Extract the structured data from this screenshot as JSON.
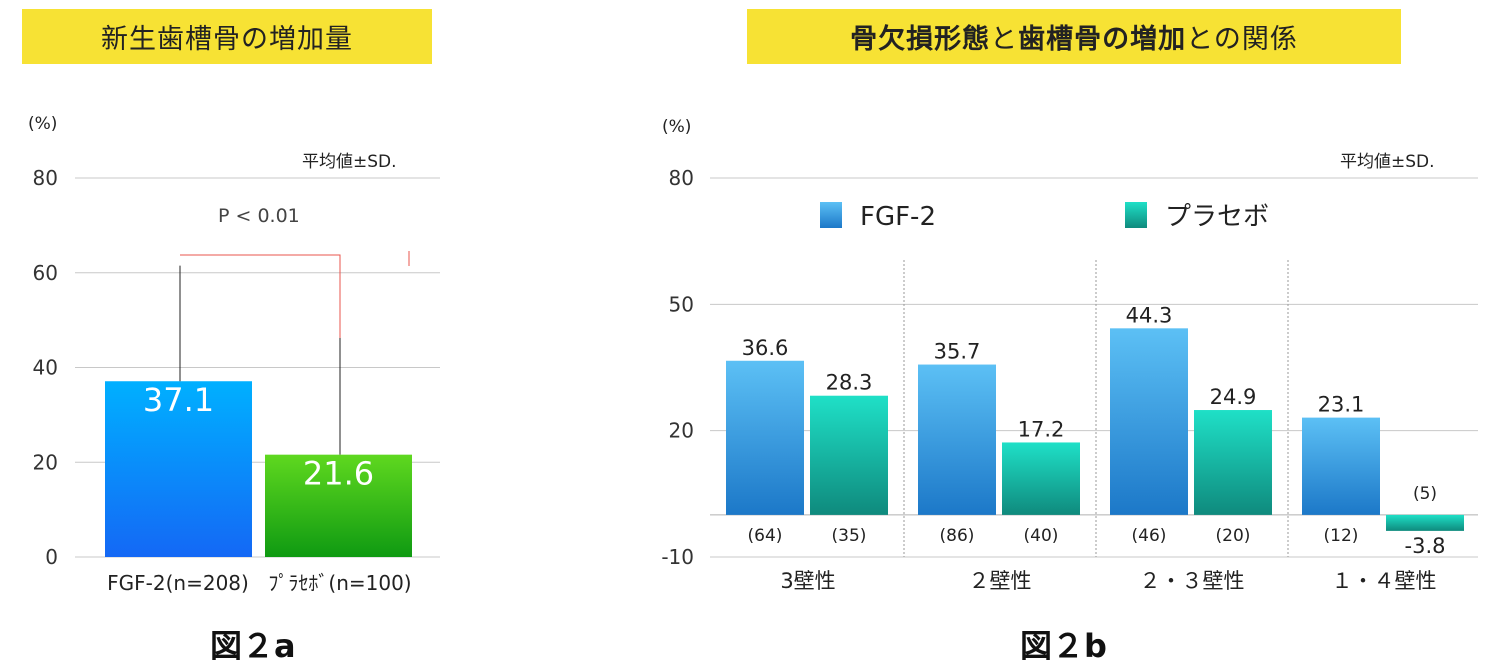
{
  "fig_a": {
    "banner": "新生歯槽骨の増加量",
    "caption": "図２a",
    "unit": "(%)",
    "note": "平均値±SD.",
    "pvalue": "P < 0.01"
  },
  "fig_b": {
    "banner_parts": [
      "骨欠損形態",
      "と",
      "歯槽骨の増加",
      "との関係"
    ],
    "caption": "図２b",
    "unit": "(%)",
    "note": "平均値±SD."
  },
  "colors": {
    "banner": "#f7e234",
    "fgf_blue": "#1f8fe6",
    "placebo_green": "#2ebd17",
    "fgf_b_blue": "#3aa0ea",
    "placebo_teal": "#17b8a3",
    "pvalue_line": "#e8554e"
  },
  "chart_data": [
    {
      "type": "bar",
      "categories": [
        "FGF-2(n=208)",
        "ﾌﾟﾗｾﾎﾞ(n=100)"
      ],
      "values": [
        37.1,
        21.6
      ],
      "yticks": [
        0,
        20,
        40,
        60,
        80
      ],
      "ylim": [
        0,
        80
      ],
      "ylabel": "(%)",
      "error_bar_top": [
        61.5,
        46.5
      ],
      "grid": true
    },
    {
      "type": "bar",
      "categories": [
        "3壁性",
        "２壁性",
        "２・３壁性",
        "１・４壁性"
      ],
      "series": [
        {
          "name": "FGF-2",
          "values": [
            36.6,
            35.7,
            44.3,
            23.1
          ],
          "n": [
            "(64)",
            "(86)",
            "(46)",
            "(12)"
          ]
        },
        {
          "name": "プラセボ",
          "values": [
            28.3,
            17.2,
            24.9,
            -3.8
          ],
          "n": [
            "(35)",
            "(40)",
            "(20)",
            "(5)"
          ]
        }
      ],
      "yticks": [
        -10,
        20,
        50,
        80
      ],
      "ylim": [
        -10,
        80
      ],
      "ylabel": "(%)",
      "legend": "top",
      "grid": true
    }
  ]
}
